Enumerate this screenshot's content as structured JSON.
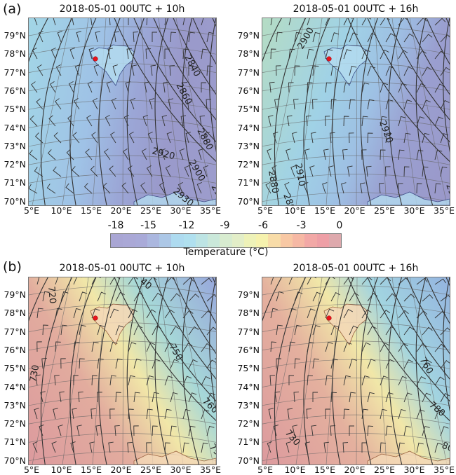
{
  "rows": [
    {
      "label": "(a)",
      "panels": [
        {
          "title": "2018-05-01 00UTC + 10h",
          "contour_labels": [
            "2840",
            "2860",
            "2880",
            "2920",
            "2900",
            "2930",
            "29"
          ],
          "bg": [
            "#a2d6e6",
            "#9fc2e6",
            "#9ba6d6",
            "#9a9acb",
            "#9c9ccc"
          ]
        },
        {
          "title": "2018-05-01 00UTC + 16h",
          "contour_labels": [
            "2900",
            "2920",
            "2910",
            "2880",
            "289",
            "29"
          ],
          "bg": [
            "#b5dcc4",
            "#a0d2e6",
            "#9ec0e4",
            "#9a9fd0",
            "#9a98c9"
          ]
        }
      ]
    },
    {
      "label": "(b)",
      "panels": [
        {
          "title": "2018-05-01 00UTC + 10h",
          "contour_labels": [
            "720",
            "40",
            "750",
            "75",
            "730",
            "760",
            "790"
          ],
          "bg": [
            "#dc9a9e",
            "#e2ac9e",
            "#f1e7a8",
            "#a6d8d8",
            "#98a8dc"
          ]
        },
        {
          "title": "2018-05-01 00UTC + 16h",
          "contour_labels": [
            "760",
            "780",
            "730",
            "800"
          ],
          "bg": [
            "#dc9a9e",
            "#e4b09e",
            "#f1e7a8",
            "#a2d4e0",
            "#94b4e0"
          ]
        }
      ]
    }
  ],
  "lat_ticks": [
    "79°N",
    "78°N",
    "77°N",
    "76°N",
    "75°N",
    "74°N",
    "73°N",
    "72°N",
    "71°N",
    "70°N"
  ],
  "lon_ticks": [
    "5°E",
    "10°E",
    "15°E",
    "20°E",
    "25°E",
    "30°E",
    "35°E"
  ],
  "colorbar": {
    "ticks": [
      "-18",
      "-15",
      "-12",
      "-9",
      "-6",
      "-3",
      "0"
    ],
    "label": "Temperature (°C)",
    "colors": [
      "#a9a6d4",
      "#aaa8d6",
      "#a9aad8",
      "#abb7df",
      "#acc7e6",
      "#aedbf0",
      "#b0e0ef",
      "#bde4e4",
      "#cae8da",
      "#d8ecd0",
      "#e3eec8",
      "#eef2b8",
      "#f6f2ae",
      "#f8dca8",
      "#f8c8a4",
      "#f6b8a4",
      "#f2a8a6",
      "#ee9fa6",
      "#dea9ad"
    ]
  },
  "marker_color": "#e8141c"
}
